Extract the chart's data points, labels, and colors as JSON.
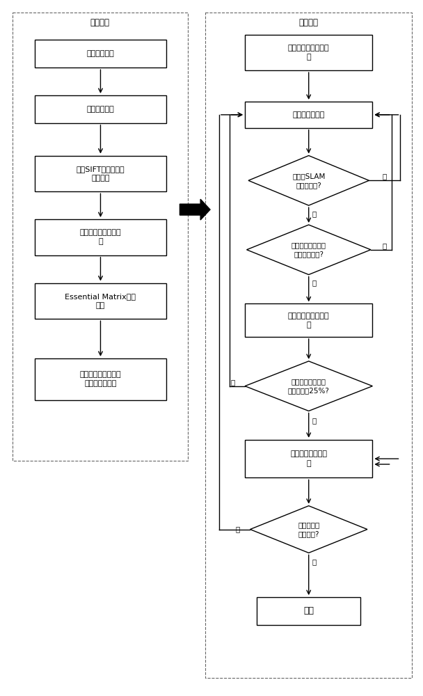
{
  "fig_width": 6.08,
  "fig_height": 10.0,
  "dpi": 100,
  "bg_color": "#ffffff",
  "box_fc": "#ffffff",
  "box_ec": "#000000",
  "lw": 1.0,
  "front_label": "前端模块",
  "back_label": "后端模块",
  "front_boxes": [
    "双目相机标定",
    "采集场景样本",
    "提取SIFT视觉特征点\n及描述子",
    "计算相似图片两两匹\n配",
    "Essential Matrix外点\n剔除",
    "保存每个地图点在图\n片中出现的位置"
  ],
  "back_rect_boxes": [
    "构建局部初始稀疏地\n图",
    "选择下一帧图片",
    "处理未计算位置的点\n云",
    "全局光束平滑调整\n否"
  ],
  "back_diamonds": [
    "是否有SLAM\n的求解姿态?",
    "是否与上一帧图片\n相对姿态近似?",
    "新增点云数量是否\n大于现有的25%?",
    "是否有图片\n未被重建?"
  ],
  "end_label": "结束",
  "arrow_yes_labels": [
    "是",
    "是",
    "是"
  ],
  "arrow_no_labels": [
    "否",
    "否",
    "否",
    "否"
  ],
  "label_yes_end": "否",
  "label_d4_yes": "是"
}
